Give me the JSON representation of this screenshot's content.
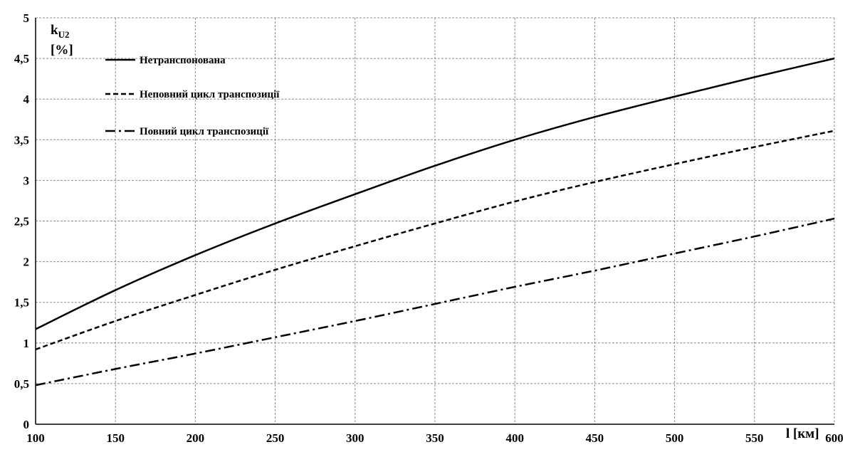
{
  "chart_data": {
    "type": "line",
    "xlabel": "l [км]",
    "ylabel_main": "k",
    "ylabel_sub": "U2",
    "ylabel_unit": "[%]",
    "xlim": [
      100,
      600
    ],
    "ylim": [
      0,
      5
    ],
    "x_ticks": [
      100,
      150,
      200,
      250,
      300,
      350,
      400,
      450,
      500,
      550,
      600
    ],
    "y_ticks": [
      0,
      0.5,
      1,
      1.5,
      2,
      2.5,
      3,
      3.5,
      4,
      4.5,
      5
    ],
    "y_tick_labels": [
      "0",
      "0,5",
      "1",
      "1,5",
      "2",
      "2,5",
      "3",
      "3,5",
      "4",
      "4,5",
      "5"
    ],
    "grid": true,
    "legend_position": "top-left",
    "x": [
      100,
      150,
      200,
      250,
      300,
      350,
      400,
      450,
      500,
      550,
      600
    ],
    "series": [
      {
        "name": "Нетранспонована",
        "dash": "solid",
        "values": [
          1.17,
          1.65,
          2.08,
          2.47,
          2.83,
          3.18,
          3.5,
          3.78,
          4.03,
          4.27,
          4.5
        ]
      },
      {
        "name": "Неповний цикл транспозиції",
        "dash": "dashed",
        "values": [
          0.92,
          1.27,
          1.59,
          1.9,
          2.19,
          2.47,
          2.74,
          2.98,
          3.2,
          3.41,
          3.61
        ]
      },
      {
        "name": "Повний цикл транспозиції",
        "dash": "dashdot",
        "values": [
          0.48,
          0.68,
          0.87,
          1.07,
          1.27,
          1.48,
          1.69,
          1.89,
          2.1,
          2.31,
          2.53
        ]
      }
    ]
  },
  "colors": {
    "line": "#000000",
    "grid": "#8c8c8c",
    "background": "#ffffff"
  }
}
